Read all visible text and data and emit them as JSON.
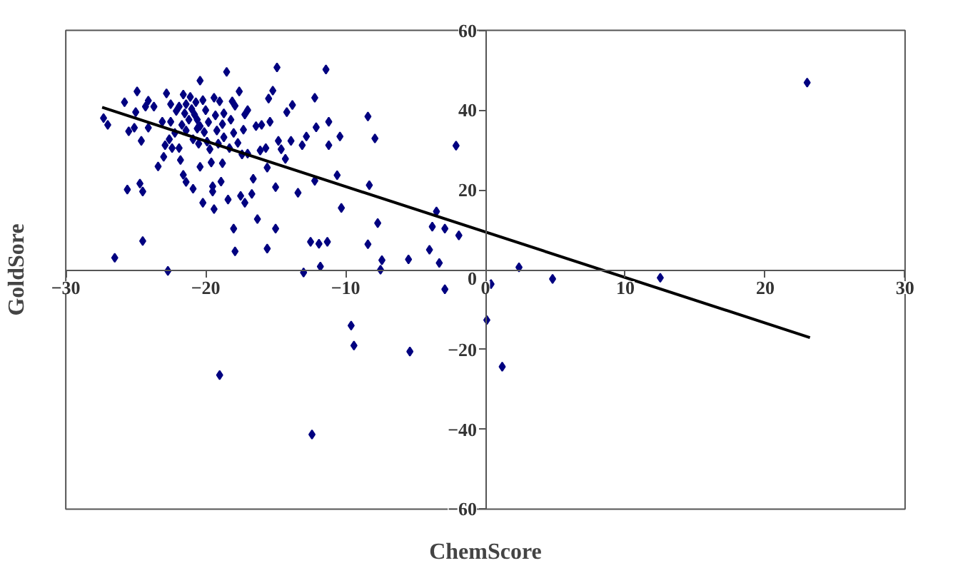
{
  "chart_data": {
    "type": "scatter",
    "xlabel": "ChemScore",
    "ylabel": "GoldSore",
    "xlim": [
      -30,
      30
    ],
    "ylim": [
      -60,
      60
    ],
    "xticks": [
      -30,
      -20,
      -10,
      0,
      10,
      20,
      30
    ],
    "yticks": [
      -60,
      -40,
      -20,
      0,
      20,
      40,
      60
    ],
    "grid": false,
    "marker": "diamond",
    "series": [
      {
        "color": "#000080",
        "x": [
          -27.3,
          -27.0,
          -26.5,
          -25.8,
          -25.5,
          -25.6,
          -25.1,
          -25.0,
          -24.9,
          -24.7,
          -24.6,
          -24.5,
          -24.5,
          -24.3,
          -24.1,
          -24.1,
          -23.7,
          -23.4,
          -23.1,
          -23.0,
          -22.9,
          -22.8,
          -22.7,
          -22.6,
          -22.5,
          -22.5,
          -22.4,
          -22.2,
          -22.1,
          -21.9,
          -21.9,
          -21.8,
          -21.7,
          -21.6,
          -21.6,
          -21.5,
          -21.4,
          -21.4,
          -21.4,
          -21.2,
          -21.1,
          -21.0,
          -20.9,
          -20.9,
          -20.8,
          -20.7,
          -20.6,
          -20.6,
          -20.5,
          -20.4,
          -20.4,
          -20.4,
          -20.2,
          -20.2,
          -20.1,
          -20.0,
          -19.9,
          -19.8,
          -19.7,
          -19.6,
          -19.5,
          -19.5,
          -19.4,
          -19.4,
          -19.3,
          -19.2,
          -19.1,
          -19.0,
          -18.9,
          -18.8,
          -18.8,
          -18.7,
          -18.7,
          -18.5,
          -18.4,
          -18.3,
          -18.2,
          -18.1,
          -18.0,
          -18.0,
          -17.9,
          -17.9,
          -17.7,
          -17.6,
          -17.5,
          -17.4,
          -17.3,
          -17.2,
          -17.2,
          -17.0,
          -17.0,
          -16.7,
          -16.6,
          -16.4,
          -16.3,
          -16.1,
          -16.0,
          -15.7,
          -15.6,
          -15.6,
          -15.5,
          -15.4,
          -15.2,
          -15.0,
          -15.0,
          -14.9,
          -14.8,
          -14.6,
          -14.3,
          -14.2,
          -13.9,
          -13.8,
          -13.4,
          -13.1,
          -12.8,
          -12.5,
          -12.2,
          -12.1,
          -12.2,
          -11.9,
          -11.8,
          -11.4,
          -11.3,
          -11.2,
          -11.2,
          -13.0,
          -10.6,
          -10.4,
          -10.3,
          -8.4,
          -8.3,
          -8.4,
          -7.9,
          -7.7,
          -7.4,
          -7.5,
          -5.5,
          -4.0,
          -3.8,
          -3.5,
          -3.3,
          -2.9,
          -2.1,
          -1.9,
          0.4,
          -9.6,
          -9.4,
          -5.4,
          -2.9,
          -19.0,
          -12.4,
          0.1,
          1.2,
          2.4,
          4.8,
          12.5,
          23.0
        ],
        "values": [
          38.0,
          36.3,
          3.0,
          42.0,
          34.7,
          20.1,
          35.6,
          39.5,
          44.7,
          21.6,
          32.3,
          19.6,
          7.2,
          40.9,
          42.4,
          35.6,
          40.9,
          25.9,
          37.1,
          28.3,
          31.2,
          44.2,
          -0.3,
          32.7,
          41.5,
          37.1,
          30.5,
          34.3,
          39.8,
          40.9,
          30.5,
          27.5,
          36.3,
          43.9,
          23.8,
          39.2,
          41.5,
          22.0,
          34.9,
          37.6,
          43.3,
          40.3,
          32.7,
          20.3,
          38.9,
          42.0,
          35.4,
          37.6,
          31.6,
          47.4,
          25.8,
          36.0,
          42.5,
          16.8,
          34.5,
          40.0,
          32.1,
          37.0,
          30.2,
          26.9,
          20.9,
          19.6,
          43.1,
          15.2,
          38.7,
          34.9,
          31.6,
          42.2,
          22.1,
          36.5,
          26.7,
          39.2,
          33.2,
          49.6,
          17.6,
          30.5,
          37.6,
          42.2,
          10.3,
          34.3,
          4.6,
          41.1,
          31.8,
          44.7,
          18.5,
          28.9,
          35.1,
          16.8,
          38.9,
          40.0,
          29.1,
          19.0,
          22.8,
          36.0,
          12.7,
          29.9,
          36.3,
          30.5,
          25.6,
          5.3,
          42.9,
          37.1,
          44.9,
          20.7,
          10.3,
          50.7,
          32.3,
          30.2,
          27.8,
          39.5,
          32.3,
          41.3,
          19.3,
          31.2,
          33.4,
          7.0,
          43.1,
          35.7,
          22.3,
          6.5,
          0.8,
          50.2,
          7.0,
          37.1,
          31.2,
          -0.7,
          23.7,
          33.4,
          15.5,
          38.4,
          21.2,
          6.4,
          32.9,
          11.7,
          2.4,
          0.0,
          2.6,
          5.0,
          10.8,
          14.6,
          1.7,
          10.3,
          31.1,
          8.6,
          -3.6,
          -14.0,
          -19.0,
          -20.5,
          -4.9,
          -26.4,
          -41.3,
          -12.6,
          -24.3,
          0.6,
          -2.3,
          -2.0,
          46.9
        ]
      },
      {
        "type": "line",
        "color": "#000000",
        "marker": "none",
        "x": [
          -27.4,
          23.2
        ],
        "values": [
          40.7,
          -17.0
        ]
      }
    ]
  }
}
